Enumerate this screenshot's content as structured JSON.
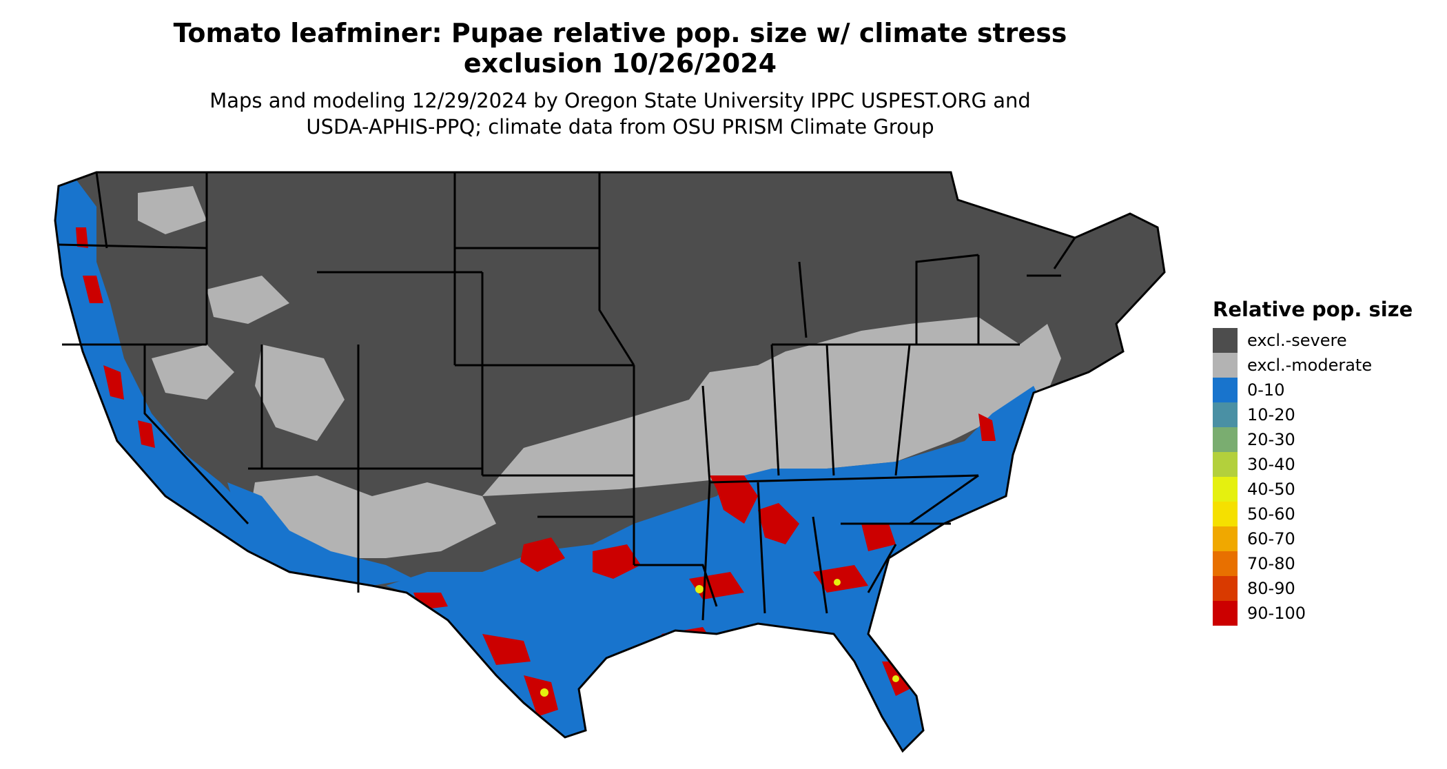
{
  "title_line1": "Tomato leafminer: Pupae relative pop. size w/ climate stress",
  "title_line2": "exclusion 10/26/2024",
  "subtitle_line1": "Maps and modeling 12/29/2024 by Oregon State University IPPC USPEST.ORG and",
  "subtitle_line2": "USDA-APHIS-PPQ; climate data from OSU PRISM Climate Group",
  "legend": {
    "title": "Relative pop. size",
    "items": [
      {
        "label": "excl.-severe",
        "color": "#4d4d4d"
      },
      {
        "label": "excl.-moderate",
        "color": "#b3b3b3"
      },
      {
        "label": "0-10",
        "color": "#1874cd"
      },
      {
        "label": "10-20",
        "color": "#4a90a4"
      },
      {
        "label": "20-30",
        "color": "#7aad70"
      },
      {
        "label": "30-40",
        "color": "#b3d03c"
      },
      {
        "label": "40-50",
        "color": "#e5f00f"
      },
      {
        "label": "50-60",
        "color": "#f5e000"
      },
      {
        "label": "60-70",
        "color": "#f0a800"
      },
      {
        "label": "70-80",
        "color": "#e87000"
      },
      {
        "label": "80-90",
        "color": "#d93a00"
      },
      {
        "label": "90-100",
        "color": "#cc0000"
      }
    ]
  },
  "map_colors": {
    "severe": "#4d4d4d",
    "moderate": "#b3b3b3",
    "low": "#1874cd",
    "high": "#cc0000",
    "mid": "#e5f00f",
    "border": "#000000"
  }
}
